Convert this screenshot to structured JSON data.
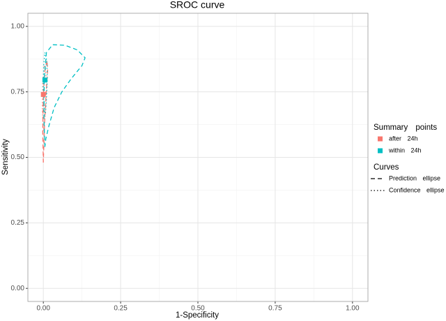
{
  "chart_data": {
    "type": "sroc",
    "title": "SROC curve",
    "x_label": "1-Specificity",
    "y_label": "Sensitivity",
    "xlim": [
      -0.05,
      1.05
    ],
    "ylim": [
      -0.05,
      1.05
    ],
    "xticks": [
      {
        "value": 0,
        "label": "0.00"
      },
      {
        "value": 0.25,
        "label": "0.25"
      },
      {
        "value": 0.5,
        "label": "0.50"
      },
      {
        "value": 0.75,
        "label": "0.75"
      },
      {
        "value": 1,
        "label": "1.00"
      }
    ],
    "yticks": [
      {
        "value": 0,
        "label": "0.00"
      },
      {
        "value": 0.25,
        "label": "0.25"
      },
      {
        "value": 0.5,
        "label": "0.50"
      },
      {
        "value": 0.75,
        "label": "0.75"
      },
      {
        "value": 1,
        "label": "1.00"
      }
    ],
    "xminor": [
      0.125,
      0.375,
      0.625,
      0.875
    ],
    "yminor": [
      0.125,
      0.375,
      0.625,
      0.875
    ],
    "grid": true,
    "points_legend_title": "Summary points",
    "curves_legend_title": "Curves",
    "curves": [
      {
        "name": "Prediction ellipse",
        "dash": "dashed"
      },
      {
        "name": "Confidence ellipse",
        "dash": "dotted"
      }
    ],
    "series": [
      {
        "name": "after 24h",
        "color": "#F8766D",
        "x": 0,
        "y": 0.74,
        "prediction_x": [
          0,
          -0.002,
          0,
          0.005,
          0.012,
          0.014,
          0.01,
          0.006,
          0.003,
          0.001,
          0
        ],
        "prediction_y": [
          0.48,
          0.6,
          0.74,
          0.83,
          0.87,
          0.83,
          0.76,
          0.68,
          0.6,
          0.52,
          0.48
        ],
        "confidence_x": [
          0,
          -0.003,
          -0.002,
          0.002,
          0.008,
          0.01,
          0.007,
          0.003,
          0
        ],
        "confidence_y": [
          0.6,
          0.68,
          0.78,
          0.85,
          0.83,
          0.76,
          0.68,
          0.62,
          0.6
        ]
      },
      {
        "name": "within 24h",
        "color": "#00BFC4",
        "x": 0.005,
        "y": 0.795,
        "prediction_x": [
          0.005,
          0.002,
          0.003,
          0.01,
          0.03,
          0.07,
          0.11,
          0.135,
          0.125,
          0.09,
          0.06,
          0.035,
          0.018,
          0.008,
          0.005
        ],
        "prediction_y": [
          0.54,
          0.65,
          0.8,
          0.9,
          0.93,
          0.928,
          0.91,
          0.88,
          0.85,
          0.8,
          0.75,
          0.69,
          0.62,
          0.57,
          0.54
        ],
        "confidence_x": [
          0.004,
          0,
          0.001,
          0.005,
          0.011,
          0.013,
          0.01,
          0.007,
          0.004
        ],
        "confidence_y": [
          0.66,
          0.75,
          0.85,
          0.9,
          0.87,
          0.8,
          0.72,
          0.67,
          0.66
        ]
      }
    ]
  }
}
